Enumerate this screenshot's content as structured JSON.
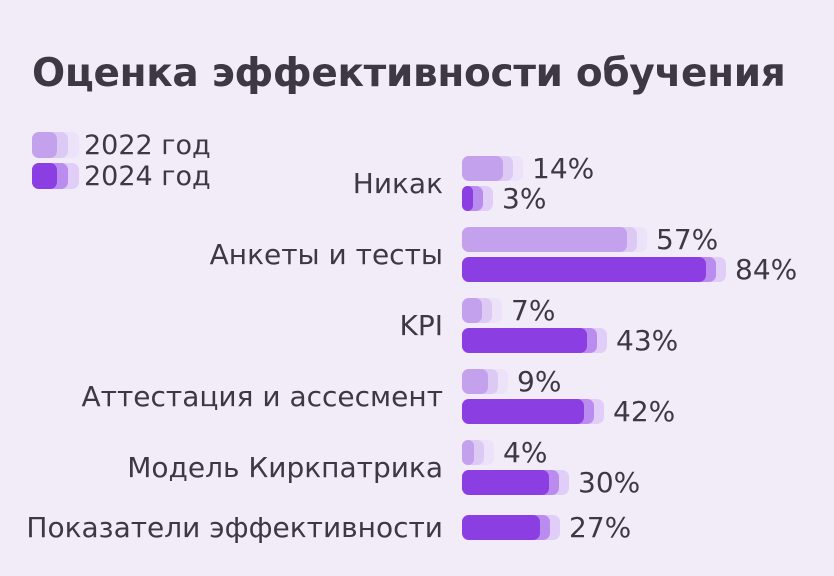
{
  "title": "Оценка эффективности обучения",
  "colors": {
    "background": "#f2ecf9",
    "text": "#3e3843",
    "series_2022": {
      "main": "#c3a1ec",
      "fade1": "#dccaf5",
      "fade2": "#ece2fa"
    },
    "series_2024": {
      "main": "#8b3fe3",
      "fade1": "#bb8cf0",
      "fade2": "#e0cef8"
    }
  },
  "legend": [
    {
      "label": "2022 год",
      "series": "2022"
    },
    {
      "label": "2024 год",
      "series": "2024"
    }
  ],
  "chart_data": {
    "type": "bar",
    "orientation": "horizontal",
    "title": "Оценка эффективности обучения",
    "categories": [
      "Никак",
      "Анкеты и тесты",
      "KPI",
      "Аттестация и ассесмент",
      "Модель Киркпатрика",
      "Показатели эффективности"
    ],
    "series": [
      {
        "name": "2022 год",
        "values": [
          14,
          57,
          7,
          9,
          4,
          null
        ]
      },
      {
        "name": "2024 год",
        "values": [
          3,
          84,
          43,
          42,
          30,
          27
        ]
      }
    ],
    "value_suffix": "%",
    "xlim": [
      0,
      100
    ],
    "legend_position": "top-left",
    "grid": false
  }
}
